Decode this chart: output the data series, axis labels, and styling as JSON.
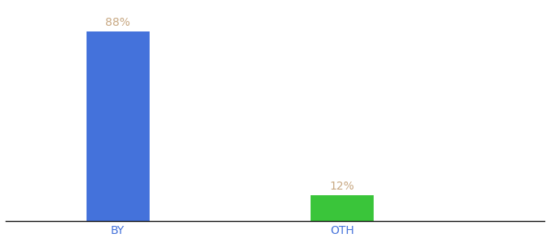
{
  "categories": [
    "BY",
    "OTH"
  ],
  "values": [
    88,
    12
  ],
  "bar_colors": [
    "#4472db",
    "#3ac53a"
  ],
  "label_texts": [
    "88%",
    "12%"
  ],
  "label_color": "#c8a882",
  "ylim": [
    0,
    100
  ],
  "background_color": "#ffffff",
  "bar_width": 0.28,
  "x_positions": [
    1,
    2
  ],
  "xlim": [
    0.5,
    2.9
  ],
  "label_fontsize": 10,
  "tick_fontsize": 10,
  "tick_color": "#4472db",
  "spine_color": "#111111"
}
